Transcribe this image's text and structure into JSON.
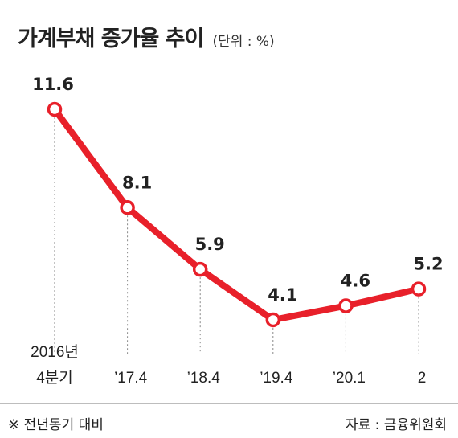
{
  "header": {
    "title": "가계부채 증가율 추이",
    "unit": "(단위 : %)"
  },
  "footer": {
    "note": "※ 전년동기 대비",
    "source": "자료 : 금융위원회"
  },
  "colors": {
    "line": "#e8202a",
    "marker_fill": "#ffffff",
    "guide": "#888888"
  },
  "chart_data": {
    "type": "line",
    "title": "가계부채 증가율 추이",
    "unit": "%",
    "categories": [
      [
        "2016년",
        "4분기"
      ],
      [
        "’17.4"
      ],
      [
        "’18.4"
      ],
      [
        "’19.4"
      ],
      [
        "’20.1"
      ],
      [
        "2"
      ]
    ],
    "series": [
      {
        "values": [
          11.6,
          8.1,
          5.9,
          4.1,
          4.6,
          5.2
        ]
      }
    ],
    "data_labels": [
      "11.6",
      "8.1",
      "5.9",
      "4.1",
      "4.6",
      "5.2"
    ],
    "grid": false,
    "legend": "none"
  }
}
